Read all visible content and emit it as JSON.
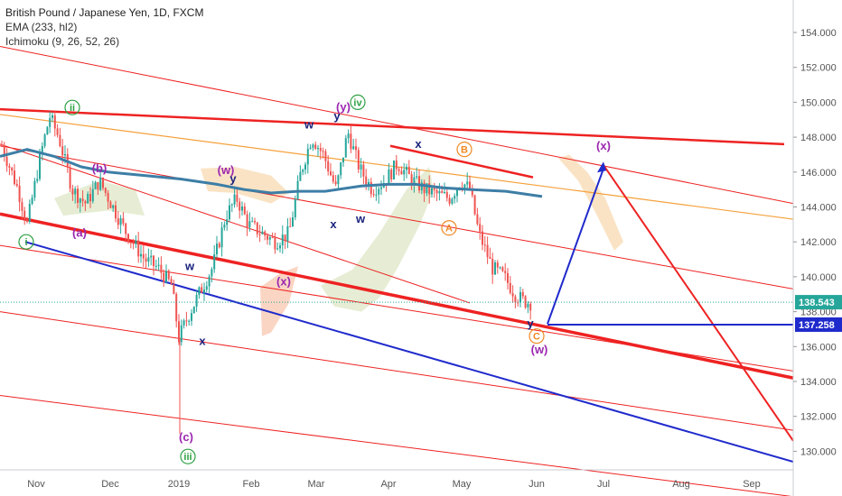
{
  "legend": {
    "title": "British Pound / Japanese Yen, 1D, FXCM",
    "indicator_ema": "EMA (233, hl2)",
    "indicator_ichimoku": "Ichimoku (9, 26, 52, 26)"
  },
  "chart_data": {
    "type": "line",
    "y_ticks": [
      "154.000",
      "152.000",
      "150.000",
      "148.000",
      "146.000",
      "144.000",
      "142.000",
      "140.000",
      "138.000",
      "136.000",
      "134.000",
      "132.000",
      "130.000"
    ],
    "x_ticks": [
      "Nov",
      "Dec",
      "2019",
      "Feb",
      "Mar",
      "Apr",
      "May",
      "Jun",
      "Jul",
      "Aug",
      "Sep"
    ],
    "ylim": [
      129.2,
      155.5
    ],
    "grid": false,
    "last_price_label": "138.543",
    "level_label": "137.258",
    "colors": {
      "up": "#26a69a",
      "down": "#ef5350",
      "ema": "#3d7ea6",
      "channel": "#ee2222",
      "support": "#1f2acc",
      "projection": "#1f2acc",
      "fib_line": "#f5a13c",
      "cloud": "#f4c27e",
      "purple": "#9c27b0",
      "green": "#2ea043",
      "orange": "#f08a24",
      "navy": "#1a237e"
    },
    "wave_labels": [
      {
        "text": "ii",
        "x": 80,
        "y": 149.7,
        "color": "green",
        "circle": true
      },
      {
        "text": "i",
        "x": 29,
        "y": 142.0,
        "color": "green",
        "circle": true
      },
      {
        "text": "iii",
        "x": 208,
        "y": 129.7,
        "color": "green",
        "circle": true
      },
      {
        "text": "iv",
        "x": 396,
        "y": 150.0,
        "color": "green",
        "circle": true
      },
      {
        "text": "(b)",
        "x": 110,
        "y": 146.2,
        "color": "purple",
        "circle": false
      },
      {
        "text": "(a)",
        "x": 88,
        "y": 142.5,
        "color": "purple",
        "circle": false
      },
      {
        "text": "(c)",
        "x": 206,
        "y": 130.8,
        "color": "purple",
        "circle": false
      },
      {
        "text": "(w)",
        "x": 250,
        "y": 146.1,
        "color": "purple",
        "circle": false
      },
      {
        "text": "(x)",
        "x": 314,
        "y": 139.7,
        "color": "purple",
        "circle": false
      },
      {
        "text": "(y)",
        "x": 380,
        "y": 149.7,
        "color": "purple",
        "circle": false
      },
      {
        "text": "(w)",
        "x": 597,
        "y": 135.8,
        "color": "purple",
        "circle": false
      },
      {
        "text": "(x)",
        "x": 668,
        "y": 147.5,
        "color": "purple",
        "circle": false
      },
      {
        "text": "w",
        "x": 210,
        "y": 140.6,
        "color": "navy",
        "circle": false
      },
      {
        "text": "x",
        "x": 224,
        "y": 136.3,
        "color": "navy",
        "circle": false
      },
      {
        "text": "y",
        "x": 258,
        "y": 145.6,
        "color": "navy",
        "circle": false
      },
      {
        "text": "w",
        "x": 342,
        "y": 148.7,
        "color": "navy",
        "circle": false
      },
      {
        "text": "y",
        "x": 373,
        "y": 149.2,
        "color": "navy",
        "circle": false
      },
      {
        "text": "x",
        "x": 369,
        "y": 143.0,
        "color": "navy",
        "circle": false
      },
      {
        "text": "w",
        "x": 399,
        "y": 143.3,
        "color": "navy",
        "circle": false
      },
      {
        "text": "x",
        "x": 463,
        "y": 147.6,
        "color": "navy",
        "circle": false
      },
      {
        "text": "y",
        "x": 587,
        "y": 137.3,
        "color": "navy",
        "circle": false
      },
      {
        "text": "A",
        "x": 497,
        "y": 142.8,
        "color": "orange",
        "circle": true
      },
      {
        "text": "B",
        "x": 514,
        "y": 147.3,
        "color": "orange",
        "circle": true
      },
      {
        "text": "C",
        "x": 594,
        "y": 136.6,
        "color": "orange",
        "circle": true
      }
    ]
  }
}
